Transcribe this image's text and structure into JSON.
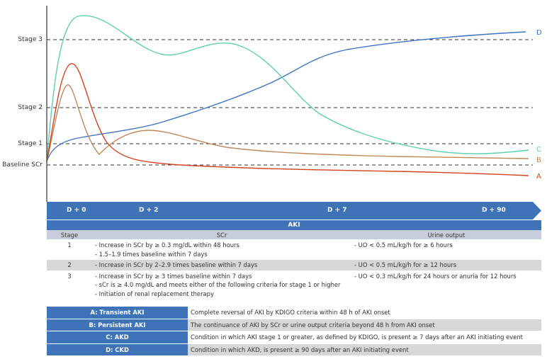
{
  "chart_data": {
    "type": "line",
    "y_levels": [
      {
        "label": "Stage 3",
        "value": 3
      },
      {
        "label": "Stage 2",
        "value": 2
      },
      {
        "label": "Stage 1",
        "value": 1
      },
      {
        "label": "Baseline SCr",
        "value": 0.6
      }
    ],
    "x_ticks": [
      "D + 0",
      "D + 2",
      "D + 7",
      "D + 90"
    ],
    "series": [
      {
        "name": "A",
        "color": "#d2421e"
      },
      {
        "name": "B",
        "color": "#c0895a"
      },
      {
        "name": "C",
        "color": "#5ecfb0"
      },
      {
        "name": "D",
        "color": "#3e73c8"
      }
    ],
    "axis_color": "#333333",
    "timeline_color": "#3e73b8"
  },
  "aki_table": {
    "title": "AKI",
    "headers": {
      "stage": "Stage",
      "scr": "SCr",
      "uo": "Urine output"
    },
    "rows": [
      {
        "stage": "1",
        "scr": [
          "- Increase in SCr by ≥ 0.3 mg/dL within 48 hours",
          "- 1.5–1.9 times baseline within 7 days"
        ],
        "uo": "- UO < 0.5 mL/kg/h for ≥ 6 hours"
      },
      {
        "stage": "2",
        "scr": [
          "- Increase in SCr by 2–2.9 times baseline within 7 days"
        ],
        "uo": "- UO < 0.5 mL/kg/h for ≥ 12 hours"
      },
      {
        "stage": "3",
        "scr": [
          "- Increase in SCr by ≥ 3 times baseline within 7 days",
          "- sCr is ≥ 4.0 mg/dL and meets either of the following criteria for stage 1 or higher",
          "- Initiation of renal replacement therapy"
        ],
        "uo": "- UO < 0.3 mL/kg/h for 24 hours or anuria for 12 hours"
      }
    ]
  },
  "definitions": [
    {
      "term": "A: Transient AKI",
      "definition": "Complete reversal of AKI by KDIGO criteria within 48 h of AKI onset"
    },
    {
      "term": "B: Persistent AKI",
      "definition": "The continuance of AKI by SCr or urine output criteria beyond 48 h from AKI onset"
    },
    {
      "term": "C: AKD",
      "definition": "Condition in which AKI stage 1 or greater, as defined by KDIGO, is present ≥ 7 days after an AKI initiating event"
    },
    {
      "term": "D: CKD",
      "definition": "Condition in which AKD, is present ≥ 90 days after an AKI initiating event"
    }
  ]
}
